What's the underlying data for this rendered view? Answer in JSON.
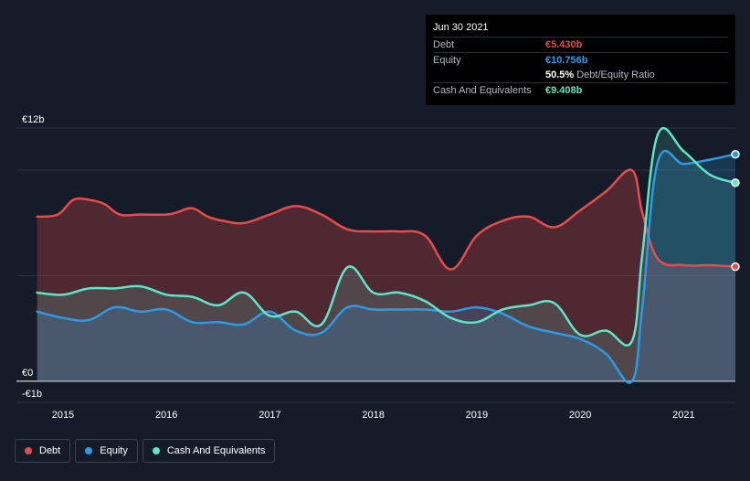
{
  "tooltip": {
    "date": "Jun 30 2021",
    "rows": [
      {
        "label": "Debt",
        "value": "€5.430b",
        "color": "#e64c4c"
      },
      {
        "label": "Equity",
        "value": "€10.756b",
        "color": "#2c9be6"
      },
      {
        "label": "",
        "value": "50.5%",
        "suffix": "Debt/Equity Ratio",
        "color": "#ffffff"
      },
      {
        "label": "Cash And Equivalents",
        "value": "€9.408b",
        "color": "#5fe5c8"
      }
    ]
  },
  "legend": [
    {
      "label": "Debt",
      "color": "#e64c4c"
    },
    {
      "label": "Equity",
      "color": "#2c9be6"
    },
    {
      "label": "Cash And Equivalents",
      "color": "#5fe5c8"
    }
  ],
  "chart_data": {
    "type": "area",
    "y_tick_labels": [
      "€12b",
      "€0",
      "-€1b"
    ],
    "y_ticks": [
      12,
      0,
      -1
    ],
    "ylim": [
      -1,
      12
    ],
    "x_tick_labels": [
      "2015",
      "2016",
      "2017",
      "2018",
      "2019",
      "2020",
      "2021"
    ],
    "x_ticks": [
      2015,
      2016,
      2017,
      2018,
      2019,
      2020,
      2021
    ],
    "xlim": [
      2014.55,
      2021.5
    ],
    "grid": true,
    "legend_position": "bottom-left",
    "series": [
      {
        "name": "Debt",
        "color": "#e64c4c",
        "x": [
          2014.75,
          2014.95,
          2015.1,
          2015.25,
          2015.4,
          2015.55,
          2015.75,
          2016.0,
          2016.1,
          2016.25,
          2016.4,
          2016.55,
          2016.75,
          2017.0,
          2017.25,
          2017.5,
          2017.75,
          2018.0,
          2018.25,
          2018.5,
          2018.75,
          2019.0,
          2019.25,
          2019.5,
          2019.75,
          2020.0,
          2020.25,
          2020.5,
          2020.6,
          2020.75,
          2021.0,
          2021.25,
          2021.5
        ],
        "y": [
          7.8,
          7.9,
          8.6,
          8.6,
          8.4,
          7.9,
          7.9,
          7.9,
          8.0,
          8.2,
          7.8,
          7.6,
          7.5,
          7.9,
          8.3,
          7.9,
          7.2,
          7.1,
          7.1,
          6.9,
          5.3,
          6.9,
          7.6,
          7.8,
          7.3,
          8.1,
          9.0,
          10.0,
          8.0,
          5.8,
          5.5,
          5.5,
          5.43
        ]
      },
      {
        "name": "Equity",
        "color": "#2c9be6",
        "x": [
          2014.75,
          2015.0,
          2015.25,
          2015.5,
          2015.75,
          2016.0,
          2016.25,
          2016.5,
          2016.75,
          2017.0,
          2017.25,
          2017.5,
          2017.75,
          2018.0,
          2018.25,
          2018.5,
          2018.75,
          2019.0,
          2019.25,
          2019.5,
          2019.75,
          2020.0,
          2020.25,
          2020.5,
          2020.6,
          2020.75,
          2021.0,
          2021.25,
          2021.5
        ],
        "y": [
          3.3,
          3.0,
          2.9,
          3.5,
          3.3,
          3.4,
          2.8,
          2.8,
          2.7,
          3.3,
          2.4,
          2.3,
          3.5,
          3.4,
          3.4,
          3.4,
          3.3,
          3.5,
          3.2,
          2.6,
          2.3,
          2.0,
          1.3,
          0.0,
          3.5,
          10.4,
          10.3,
          10.5,
          10.756
        ]
      },
      {
        "name": "Cash And Equivalents",
        "color": "#5fe5c8",
        "x": [
          2014.75,
          2015.0,
          2015.25,
          2015.5,
          2015.75,
          2016.0,
          2016.25,
          2016.5,
          2016.75,
          2017.0,
          2017.25,
          2017.5,
          2017.75,
          2018.0,
          2018.25,
          2018.5,
          2018.75,
          2019.0,
          2019.25,
          2019.5,
          2019.75,
          2020.0,
          2020.25,
          2020.5,
          2020.6,
          2020.75,
          2021.0,
          2021.25,
          2021.5
        ],
        "y": [
          4.2,
          4.1,
          4.4,
          4.4,
          4.5,
          4.1,
          4.0,
          3.6,
          4.2,
          3.1,
          3.3,
          2.7,
          5.4,
          4.2,
          4.2,
          3.8,
          3.0,
          2.8,
          3.4,
          3.6,
          3.7,
          2.2,
          2.4,
          1.9,
          6.0,
          11.7,
          10.9,
          9.8,
          9.408
        ]
      }
    ]
  }
}
